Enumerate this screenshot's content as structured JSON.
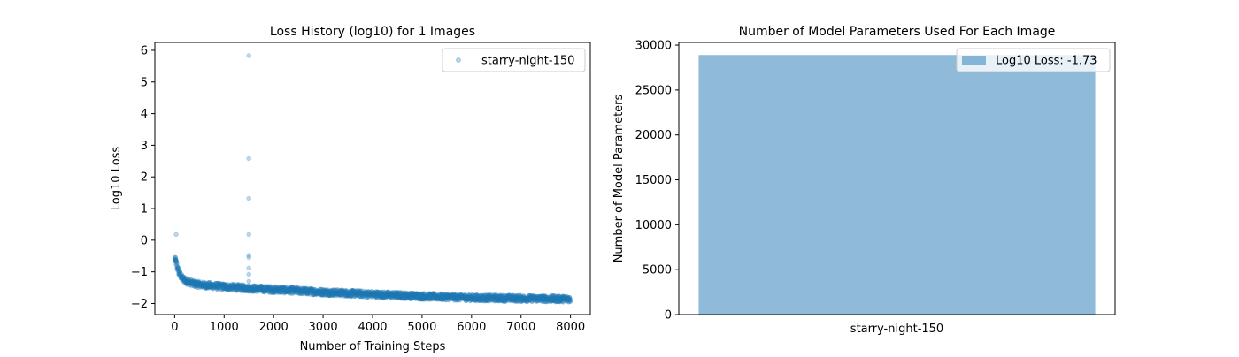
{
  "chart_data": [
    {
      "type": "scatter",
      "title": "Loss History (log10) for 1 Images",
      "xlabel": "Number of Training Steps",
      "ylabel": "Log10 Loss",
      "xlim": [
        -400,
        8400
      ],
      "ylim": [
        -2.35,
        6.25
      ],
      "xticks": [
        0,
        1000,
        2000,
        3000,
        4000,
        5000,
        6000,
        7000,
        8000
      ],
      "xtick_labels": [
        "0",
        "1000",
        "2000",
        "3000",
        "4000",
        "5000",
        "6000",
        "7000",
        "8000"
      ],
      "yticks": [
        -2,
        -1,
        0,
        1,
        2,
        3,
        4,
        5,
        6
      ],
      "ytick_labels": [
        "−2",
        "−1",
        "0",
        "1",
        "2",
        "3",
        "4",
        "5",
        "6"
      ],
      "grid": false,
      "legend": {
        "position": "top-right",
        "entries": [
          "starry-night-150"
        ]
      },
      "series": [
        {
          "name": "starry-night-150",
          "color": "#1f77b4",
          "alpha": 0.3,
          "trend": {
            "x": [
              0,
              40,
              80,
              150,
              250,
              400,
              600,
              1000,
              1500,
              2000,
              3000,
              4000,
              5000,
              6000,
              7000,
              8000
            ],
            "y": [
              -0.6,
              -0.75,
              -1.0,
              -1.2,
              -1.3,
              -1.38,
              -1.42,
              -1.47,
              -1.52,
              -1.56,
              -1.64,
              -1.71,
              -1.77,
              -1.82,
              -1.84,
              -1.86
            ]
          },
          "step_range": [
            0,
            8000
          ],
          "approx_points": 2000,
          "outliers": [
            {
              "x": 1500,
              "y": 5.83
            },
            {
              "x": 1500,
              "y": 2.58
            },
            {
              "x": 1500,
              "y": 1.32
            },
            {
              "x": 1500,
              "y": 0.18
            },
            {
              "x": 1500,
              "y": -0.48
            },
            {
              "x": 1500,
              "y": -0.55
            },
            {
              "x": 1500,
              "y": -0.88
            },
            {
              "x": 1500,
              "y": -1.08
            },
            {
              "x": 1500,
              "y": -1.3
            },
            {
              "x": 30,
              "y": 0.18
            },
            {
              "x": 20,
              "y": -0.55
            },
            {
              "x": 25,
              "y": -0.62
            },
            {
              "x": 50,
              "y": -0.9
            }
          ]
        }
      ]
    },
    {
      "type": "bar",
      "title": "Number of Model Parameters Used For Each Image",
      "xlabel": "",
      "ylabel": "Number of Model Parameters",
      "categories": [
        "starry-night-150"
      ],
      "values": [
        28900
      ],
      "ylim": [
        0,
        30300
      ],
      "yticks": [
        0,
        5000,
        10000,
        15000,
        20000,
        25000,
        30000
      ],
      "ytick_labels": [
        "0",
        "5000",
        "10000",
        "15000",
        "20000",
        "25000",
        "30000"
      ],
      "grid": false,
      "color": "#1f77b4",
      "alpha": 0.5,
      "legend": {
        "position": "top-right",
        "entries": [
          "Log10 Loss: -1.73"
        ]
      }
    }
  ]
}
